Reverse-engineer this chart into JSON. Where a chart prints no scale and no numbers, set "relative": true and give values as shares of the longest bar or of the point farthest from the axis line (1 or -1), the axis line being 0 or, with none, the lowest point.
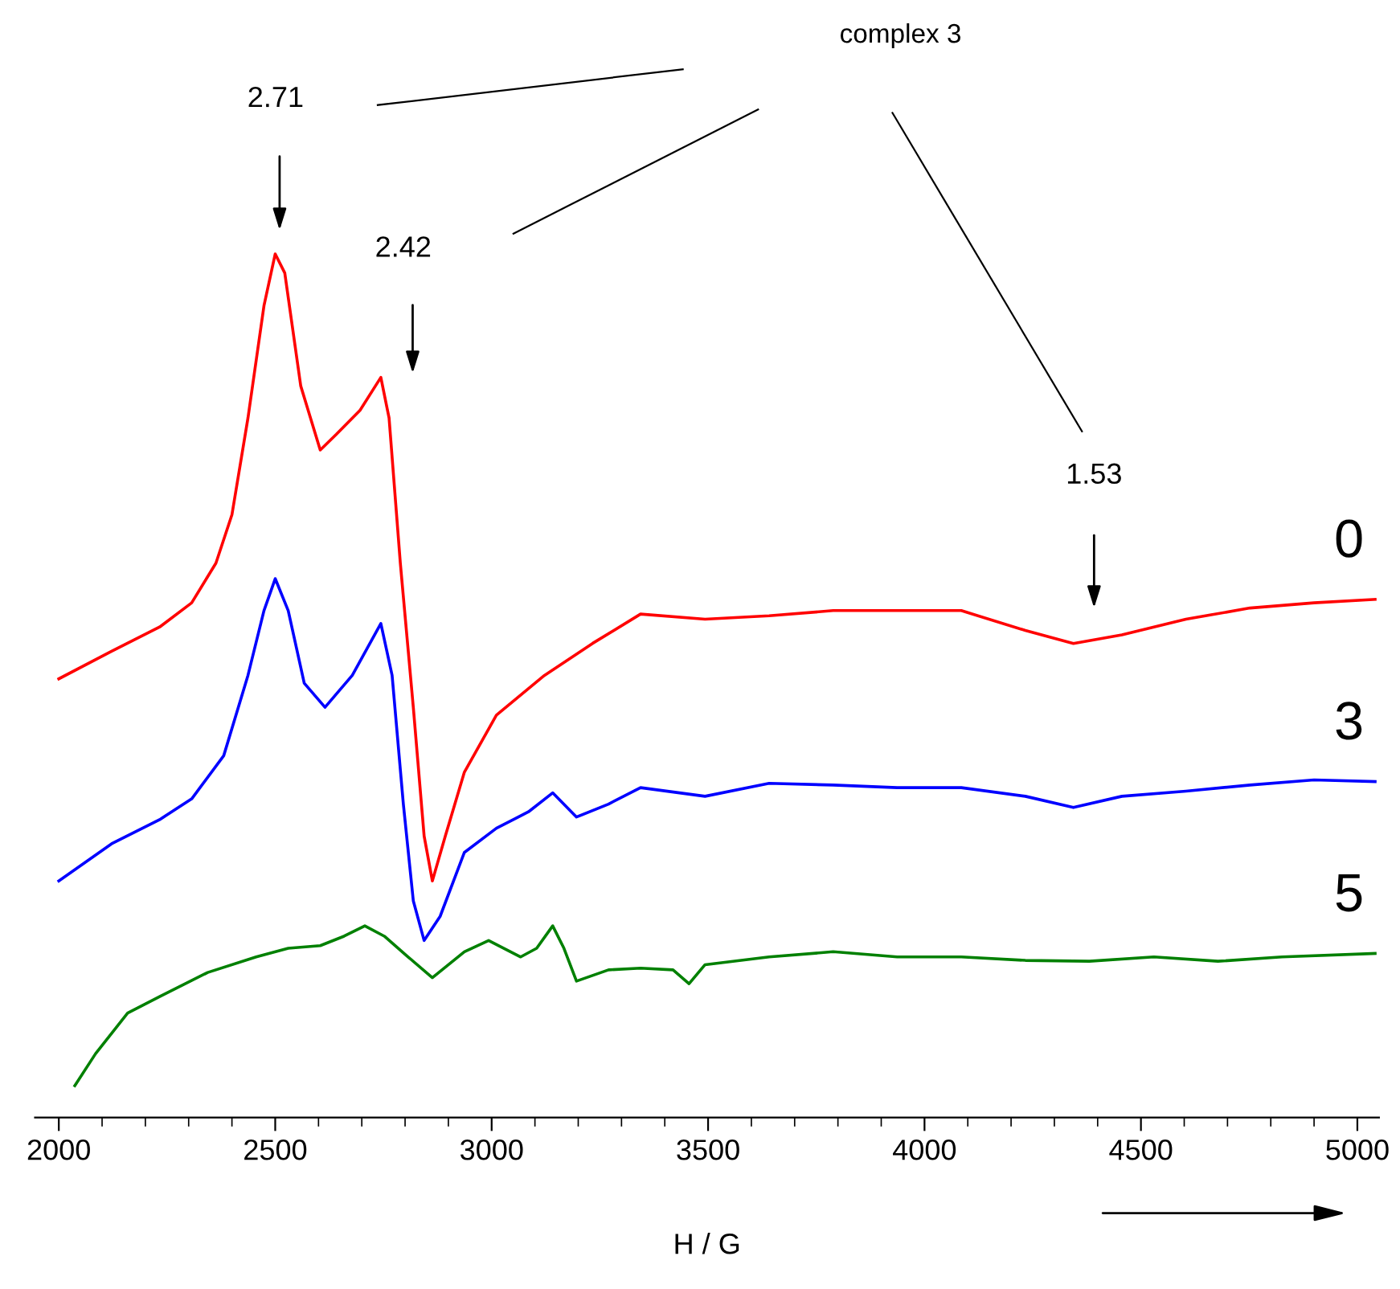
{
  "chart_data": {
    "type": "line",
    "relative": true,
    "xlabel": "H / G",
    "grid": false,
    "marker": "none",
    "line_style": "solid",
    "tick_labels": "x",
    "xlim": [
      1945,
      5050
    ],
    "xticks": [
      2000,
      {
        "value": 2100,
        "label": null
      },
      {
        "value": 2200,
        "label": null
      },
      {
        "value": 2300,
        "label": null
      },
      {
        "value": 2400,
        "label": null
      },
      2500,
      {
        "value": 2600,
        "label": null
      },
      {
        "value": 2700,
        "label": null
      },
      {
        "value": 2800,
        "label": null
      },
      {
        "value": 2900,
        "label": null
      },
      3000,
      {
        "value": 3100,
        "label": null
      },
      {
        "value": 3200,
        "label": null
      },
      {
        "value": 3300,
        "label": null
      },
      {
        "value": 3400,
        "label": null
      },
      3500,
      {
        "value": 3600,
        "label": null
      },
      {
        "value": 3700,
        "label": null
      },
      {
        "value": 3800,
        "label": null
      },
      {
        "value": 3900,
        "label": null
      },
      4000,
      {
        "value": 4100,
        "label": null
      },
      {
        "value": 4200,
        "label": null
      },
      {
        "value": 4300,
        "label": null
      },
      {
        "value": 4400,
        "label": null
      },
      4500,
      {
        "value": 4600,
        "label": null
      },
      {
        "value": 4700,
        "label": null
      },
      {
        "value": 4800,
        "label": null
      },
      {
        "value": 4900,
        "label": null
      },
      5000
    ],
    "annotations": [
      "complex 3",
      "2.71",
      "2.42",
      "1.53"
    ],
    "series": [
      {
        "name": "0",
        "color": "#ff0000",
        "x": [
          2000,
          2122,
          2233,
          2307,
          2363,
          2400,
          2437,
          2474,
          2500,
          2522,
          2559,
          2604,
          2641,
          2696,
          2744,
          2763,
          2789,
          2819,
          2844,
          2863,
          2893,
          2937,
          3011,
          3122,
          3233,
          3344,
          3493,
          3641,
          3789,
          3937,
          4085,
          4233,
          4344,
          4456,
          4604,
          4752,
          4900,
          5041
        ],
        "values": [
          0.508,
          0.54,
          0.568,
          0.596,
          0.642,
          0.698,
          0.81,
          0.94,
          1.0,
          0.978,
          0.847,
          0.773,
          0.791,
          0.819,
          0.857,
          0.81,
          0.642,
          0.475,
          0.326,
          0.274,
          0.326,
          0.4,
          0.466,
          0.512,
          0.549,
          0.583,
          0.577,
          0.581,
          0.587,
          0.587,
          0.587,
          0.564,
          0.549,
          0.559,
          0.577,
          0.59,
          0.596,
          0.6
        ]
      },
      {
        "name": "3",
        "color": "#0000ff",
        "x": [
          2000,
          2122,
          2233,
          2307,
          2381,
          2437,
          2474,
          2500,
          2530,
          2567,
          2615,
          2678,
          2744,
          2770,
          2796,
          2819,
          2844,
          2881,
          2937,
          3011,
          3085,
          3141,
          3196,
          3270,
          3344,
          3493,
          3641,
          3789,
          3937,
          4085,
          4233,
          4344,
          4456,
          4604,
          4752,
          4900,
          5041
        ],
        "values": [
          0.274,
          0.317,
          0.345,
          0.369,
          0.419,
          0.512,
          0.587,
          0.624,
          0.587,
          0.503,
          0.475,
          0.512,
          0.572,
          0.512,
          0.363,
          0.251,
          0.205,
          0.233,
          0.307,
          0.335,
          0.354,
          0.376,
          0.348,
          0.363,
          0.382,
          0.372,
          0.387,
          0.385,
          0.382,
          0.382,
          0.372,
          0.359,
          0.372,
          0.378,
          0.385,
          0.391,
          0.389
        ]
      },
      {
        "name": "5",
        "color": "#008000",
        "x": [
          2037,
          2085,
          2159,
          2233,
          2344,
          2456,
          2530,
          2604,
          2659,
          2707,
          2752,
          2807,
          2863,
          2937,
          2993,
          3067,
          3104,
          3141,
          3167,
          3196,
          3270,
          3344,
          3419,
          3456,
          3493,
          3641,
          3789,
          3937,
          4085,
          4233,
          4381,
          4530,
          4678,
          4826,
          5041
        ],
        "values": [
          0.037,
          0.074,
          0.121,
          0.14,
          0.168,
          0.186,
          0.196,
          0.199,
          0.21,
          0.222,
          0.21,
          0.186,
          0.162,
          0.192,
          0.205,
          0.186,
          0.196,
          0.222,
          0.196,
          0.158,
          0.171,
          0.173,
          0.171,
          0.155,
          0.177,
          0.186,
          0.192,
          0.186,
          0.186,
          0.182,
          0.181,
          0.186,
          0.181,
          0.186,
          0.19
        ]
      }
    ]
  }
}
